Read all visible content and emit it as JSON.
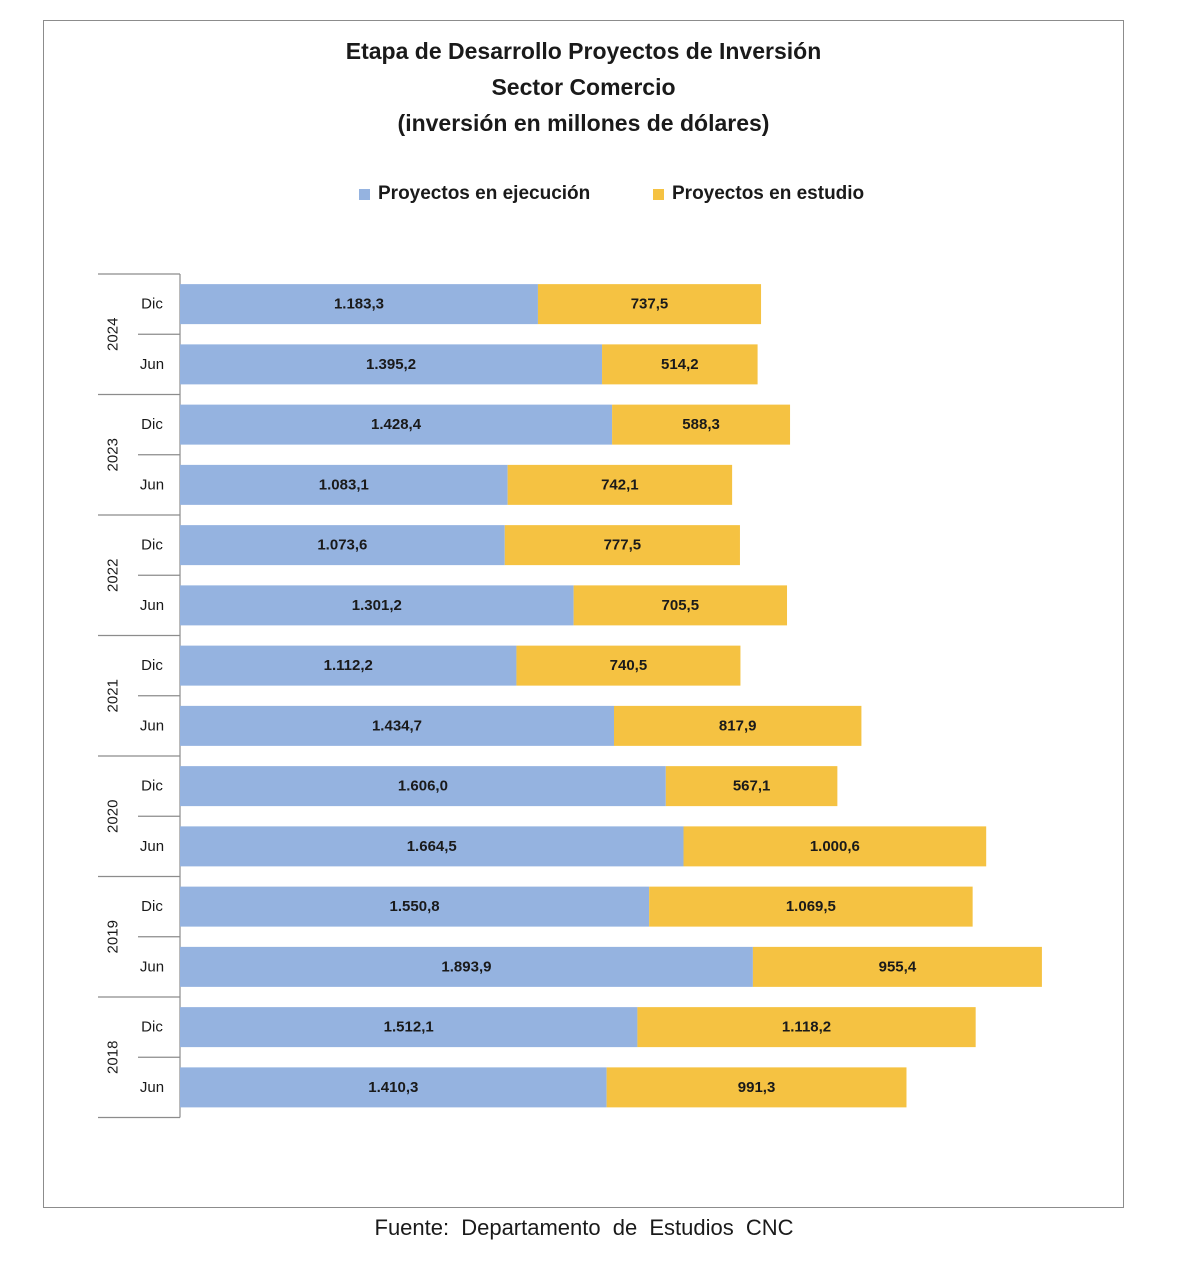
{
  "chart_data": {
    "type": "bar",
    "orientation": "horizontal",
    "stacked": true,
    "title_lines": [
      "Etapa de Desarrollo Proyectos de Inversión",
      "Sector Comercio",
      "(inversión en millones de dólares)"
    ],
    "legend_position": "top",
    "grid": false,
    "xlim": [
      0,
      3000
    ],
    "groups": [
      {
        "year": "2024",
        "periods": [
          {
            "label": "Dic",
            "ejecucion": 1183.3,
            "ejecucion_label": "1.183,3",
            "estudio": 737.5,
            "estudio_label": "737,5"
          },
          {
            "label": "Jun",
            "ejecucion": 1395.2,
            "ejecucion_label": "1.395,2",
            "estudio": 514.2,
            "estudio_label": "514,2"
          }
        ]
      },
      {
        "year": "2023",
        "periods": [
          {
            "label": "Dic",
            "ejecucion": 1428.4,
            "ejecucion_label": "1.428,4",
            "estudio": 588.3,
            "estudio_label": "588,3"
          },
          {
            "label": "Jun",
            "ejecucion": 1083.1,
            "ejecucion_label": "1.083,1",
            "estudio": 742.1,
            "estudio_label": "742,1"
          }
        ]
      },
      {
        "year": "2022",
        "periods": [
          {
            "label": "Dic",
            "ejecucion": 1073.6,
            "ejecucion_label": "1.073,6",
            "estudio": 777.5,
            "estudio_label": "777,5"
          },
          {
            "label": "Jun",
            "ejecucion": 1301.2,
            "ejecucion_label": "1.301,2",
            "estudio": 705.5,
            "estudio_label": "705,5"
          }
        ]
      },
      {
        "year": "2021",
        "periods": [
          {
            "label": "Dic",
            "ejecucion": 1112.2,
            "ejecucion_label": "1.112,2",
            "estudio": 740.5,
            "estudio_label": "740,5"
          },
          {
            "label": "Jun",
            "ejecucion": 1434.7,
            "ejecucion_label": "1.434,7",
            "estudio": 817.9,
            "estudio_label": "817,9"
          }
        ]
      },
      {
        "year": "2020",
        "periods": [
          {
            "label": "Dic",
            "ejecucion": 1606.0,
            "ejecucion_label": "1.606,0",
            "estudio": 567.1,
            "estudio_label": "567,1"
          },
          {
            "label": "Jun",
            "ejecucion": 1664.5,
            "ejecucion_label": "1.664,5",
            "estudio": 1000.6,
            "estudio_label": "1.000,6"
          }
        ]
      },
      {
        "year": "2019",
        "periods": [
          {
            "label": "Dic",
            "ejecucion": 1550.8,
            "ejecucion_label": "1.550,8",
            "estudio": 1069.5,
            "estudio_label": "1.069,5"
          },
          {
            "label": "Jun",
            "ejecucion": 1893.9,
            "ejecucion_label": "1.893,9",
            "estudio": 955.4,
            "estudio_label": "955,4"
          }
        ]
      },
      {
        "year": "2018",
        "periods": [
          {
            "label": "Dic",
            "ejecucion": 1512.1,
            "ejecucion_label": "1.512,1",
            "estudio": 1118.2,
            "estudio_label": "1.118,2"
          },
          {
            "label": "Jun",
            "ejecucion": 1410.3,
            "ejecucion_label": "1.410,3",
            "estudio": 991.3,
            "estudio_label": "991,3"
          }
        ]
      }
    ],
    "series": [
      {
        "key": "ejecucion",
        "name": "Proyectos en ejecución",
        "color": "#95b3e0"
      },
      {
        "key": "estudio",
        "name": "Proyectos en estudio",
        "color": "#f5c242"
      }
    ]
  },
  "source": "Fuente:  Departamento  de Estudios  CNC"
}
